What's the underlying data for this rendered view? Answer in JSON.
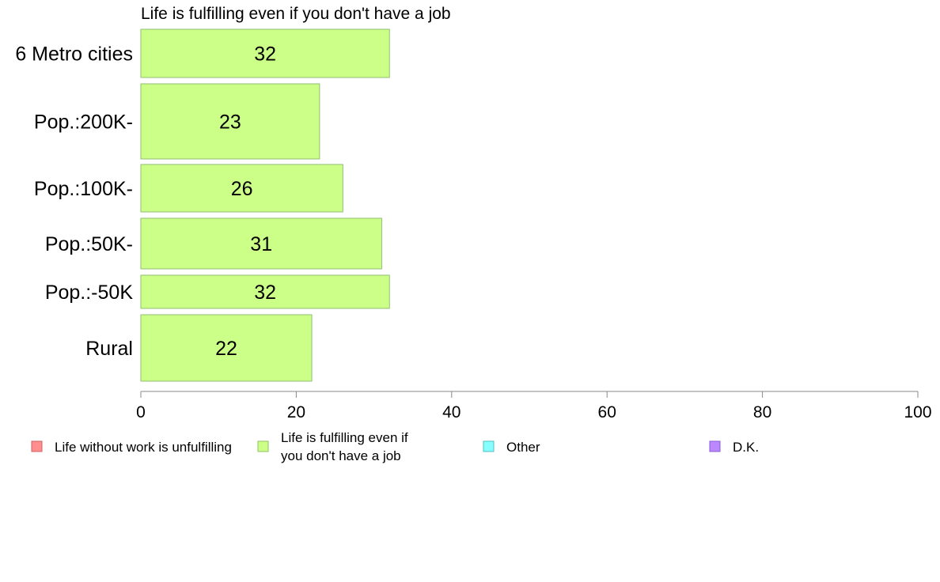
{
  "chart_data": {
    "type": "bar",
    "orientation": "horizontal",
    "title": "Life is fulfilling even if you don't have a job",
    "categories": [
      "6 Metro cities",
      "Pop.:200K-",
      "Pop.:100K-",
      "Pop.:50K-",
      "Pop.:-50K",
      "Rural"
    ],
    "series": [
      {
        "name": "Life is fulfilling even if you don't have a job",
        "values": [
          32,
          23,
          26,
          31,
          32,
          22
        ],
        "color": "#ccff88"
      }
    ],
    "xlim": [
      0,
      100
    ],
    "xticks": [
      0,
      20,
      40,
      60,
      80,
      100
    ],
    "xlabel": "",
    "ylabel": "",
    "grid": false,
    "legend": {
      "position": "bottom",
      "items": [
        {
          "label": "Life without work is unfulfilling",
          "color": "#ff8f8f",
          "border": "#d06060"
        },
        {
          "label_lines": [
            "Life is fulfilling even if",
            "you don't have a job"
          ],
          "color": "#ccff88",
          "border": "#90c060"
        },
        {
          "label": "Other",
          "color": "#88ffff",
          "border": "#50c0c0"
        },
        {
          "label": "D.K.",
          "color": "#bb88ff",
          "border": "#8a5cd0"
        }
      ]
    }
  }
}
